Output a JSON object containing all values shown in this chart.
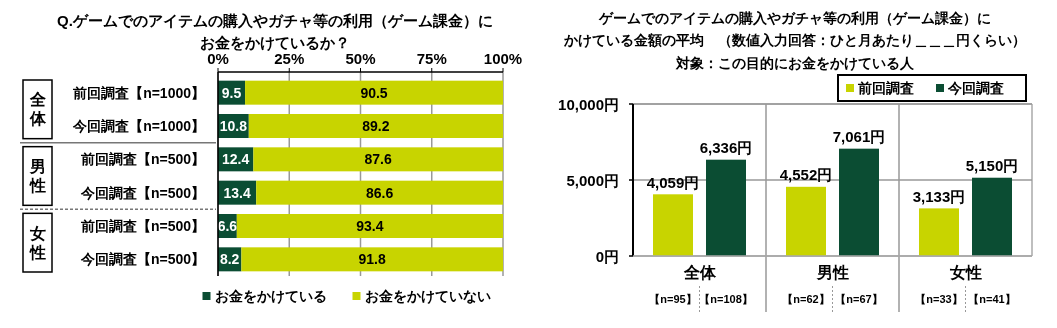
{
  "chart_data": [
    {
      "type": "bar",
      "orientation": "horizontal",
      "stacked": true,
      "title": "Q.ゲームでのアイテムの購入やガチャ等の利用（ゲーム課金）にお金をかけているか？",
      "categories": [
        "前回調査【n=1000】",
        "今回調査【n=1000】",
        "前回調査【n=500】",
        "今回調査【n=500】",
        "前回調査【n=500】",
        "今回調査【n=500】"
      ],
      "series": [
        {
          "name": "お金をかけている",
          "color": "#0b4d33",
          "values": [
            9.5,
            10.8,
            12.4,
            13.4,
            6.6,
            8.2
          ]
        },
        {
          "name": "お金をかけていない",
          "color": "#c8d400",
          "values": [
            90.5,
            89.2,
            87.6,
            86.6,
            93.4,
            91.8
          ]
        }
      ],
      "annotations": [
        "全体",
        "男性",
        "女性"
      ],
      "xlim": [
        0,
        100
      ],
      "xticks": [
        {
          "value": 0,
          "label": "0%"
        },
        {
          "value": 25,
          "label": "25%"
        },
        {
          "value": 50,
          "label": "50%"
        },
        {
          "value": 75,
          "label": "75%"
        },
        {
          "value": 100,
          "label": "100%"
        }
      ],
      "data_labels": true,
      "grid": "x",
      "legend": "bottom"
    },
    {
      "type": "bar",
      "title": "ゲームでのアイテムの購入やガチャ等の利用（ゲーム課金）にかけている金額の平均　（数値入力回答：ひと月あたり＿＿＿円くらい）",
      "subtitle": "対象：この目的にお金をかけている人",
      "categories": [
        "全体",
        "男性",
        "女性"
      ],
      "series": [
        {
          "name": "前回調査",
          "color": "#c8d400",
          "values": [
            4059,
            4552,
            3133
          ],
          "value_labels": [
            "4,059円",
            "4,552円",
            "3,133円"
          ]
        },
        {
          "name": "今回調査",
          "color": "#0b4d33",
          "values": [
            6336,
            7061,
            5150
          ],
          "value_labels": [
            "6,336円",
            "7,061円",
            "5,150円"
          ]
        }
      ],
      "annotations": [
        "【n=95】",
        "【n=108】",
        "【n=62】",
        "【n=67】",
        "【n=33】",
        "【n=41】"
      ],
      "ylim": [
        0,
        10000
      ],
      "yticks": [
        {
          "value": 0,
          "label": "0円"
        },
        {
          "value": 5000,
          "label": "5,000円"
        },
        {
          "value": 10000,
          "label": "10,000円"
        }
      ],
      "grid": "y",
      "legend": "top right"
    }
  ]
}
